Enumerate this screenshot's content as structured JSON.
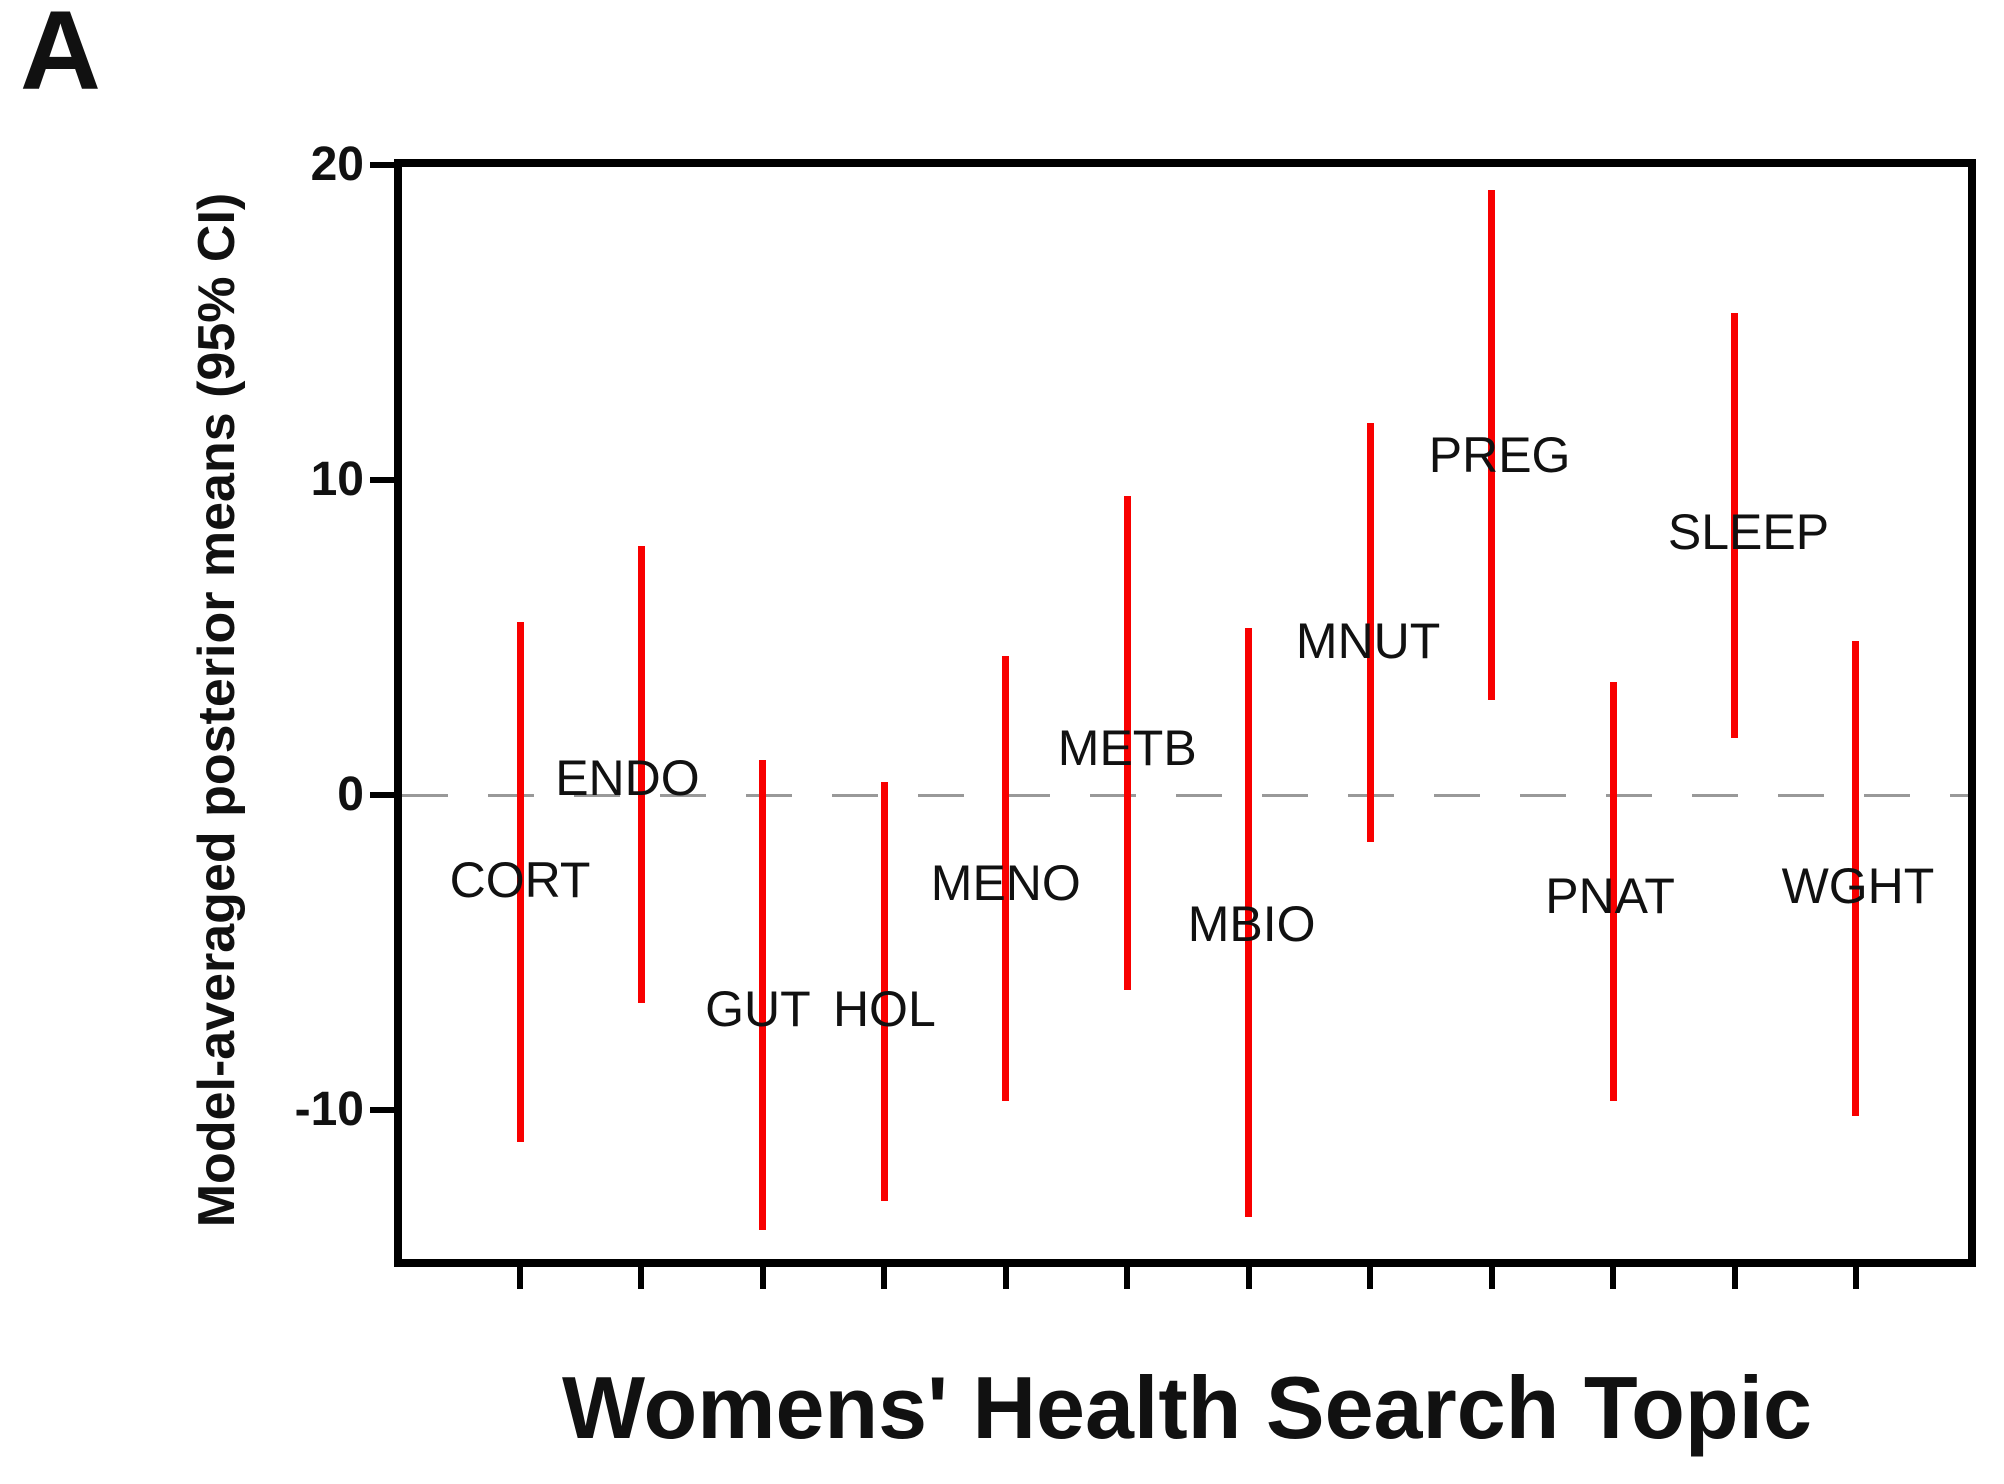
{
  "panel_label": "A",
  "chart_data": {
    "type": "interval",
    "subtype": "95%-credible-interval vertical bars",
    "title": "",
    "xlabel": "Womens' Health Search Topic",
    "ylabel": "Model-averaged posterior means (95% CI)",
    "ylim": [
      -14.9,
      20.1
    ],
    "yticks": [
      20,
      10,
      0,
      -10
    ],
    "ytick_labels": [
      "20",
      "10",
      "0",
      "-10"
    ],
    "zero_reference_line": 0,
    "grid": "off",
    "legend": "none",
    "bar_color": "#f80000",
    "zero_line_color": "#999999",
    "axis_color": "#000000",
    "categories": [
      "CORT",
      "ENDO",
      "GUT",
      "HOL",
      "MENO",
      "METB",
      "MBIO",
      "MNUT",
      "PREG",
      "PNAT",
      "SLEEP",
      "WGHT"
    ],
    "intervals": [
      {
        "topic": "CORT",
        "lo": -11.0,
        "hi": 5.5,
        "label_value": -2.7,
        "label_dx": 0
      },
      {
        "topic": "ENDO",
        "lo": -6.6,
        "hi": 7.9,
        "label_value": 0.55,
        "label_dx": -14
      },
      {
        "topic": "GUT",
        "lo": -13.8,
        "hi": 1.1,
        "label_value": -6.8,
        "label_dx": -5
      },
      {
        "topic": "HOL",
        "lo": -12.9,
        "hi": 0.4,
        "label_value": -6.8,
        "label_dx": 0
      },
      {
        "topic": "MENO",
        "lo": -9.7,
        "hi": 4.4,
        "label_value": -2.8,
        "label_dx": 0
      },
      {
        "topic": "METB",
        "lo": -6.2,
        "hi": 9.5,
        "label_value": 1.5,
        "label_dx": 0
      },
      {
        "topic": "MBIO",
        "lo": -13.4,
        "hi": 5.3,
        "label_value": -4.1,
        "label_dx": 3
      },
      {
        "topic": "MNUT",
        "lo": -1.5,
        "hi": 11.8,
        "label_value": 4.9,
        "label_dx": -2
      },
      {
        "topic": "PREG",
        "lo": 3.0,
        "hi": 19.2,
        "label_value": 10.8,
        "label_dx": 8
      },
      {
        "topic": "PNAT",
        "lo": -9.7,
        "hi": 3.6,
        "label_value": -3.2,
        "label_dx": -3
      },
      {
        "topic": "SLEEP",
        "lo": 1.8,
        "hi": 15.3,
        "label_value": 8.35,
        "label_dx": 14
      },
      {
        "topic": "WGHT",
        "lo": -10.2,
        "hi": 4.9,
        "label_value": -2.9,
        "label_dx": 2
      }
    ]
  }
}
